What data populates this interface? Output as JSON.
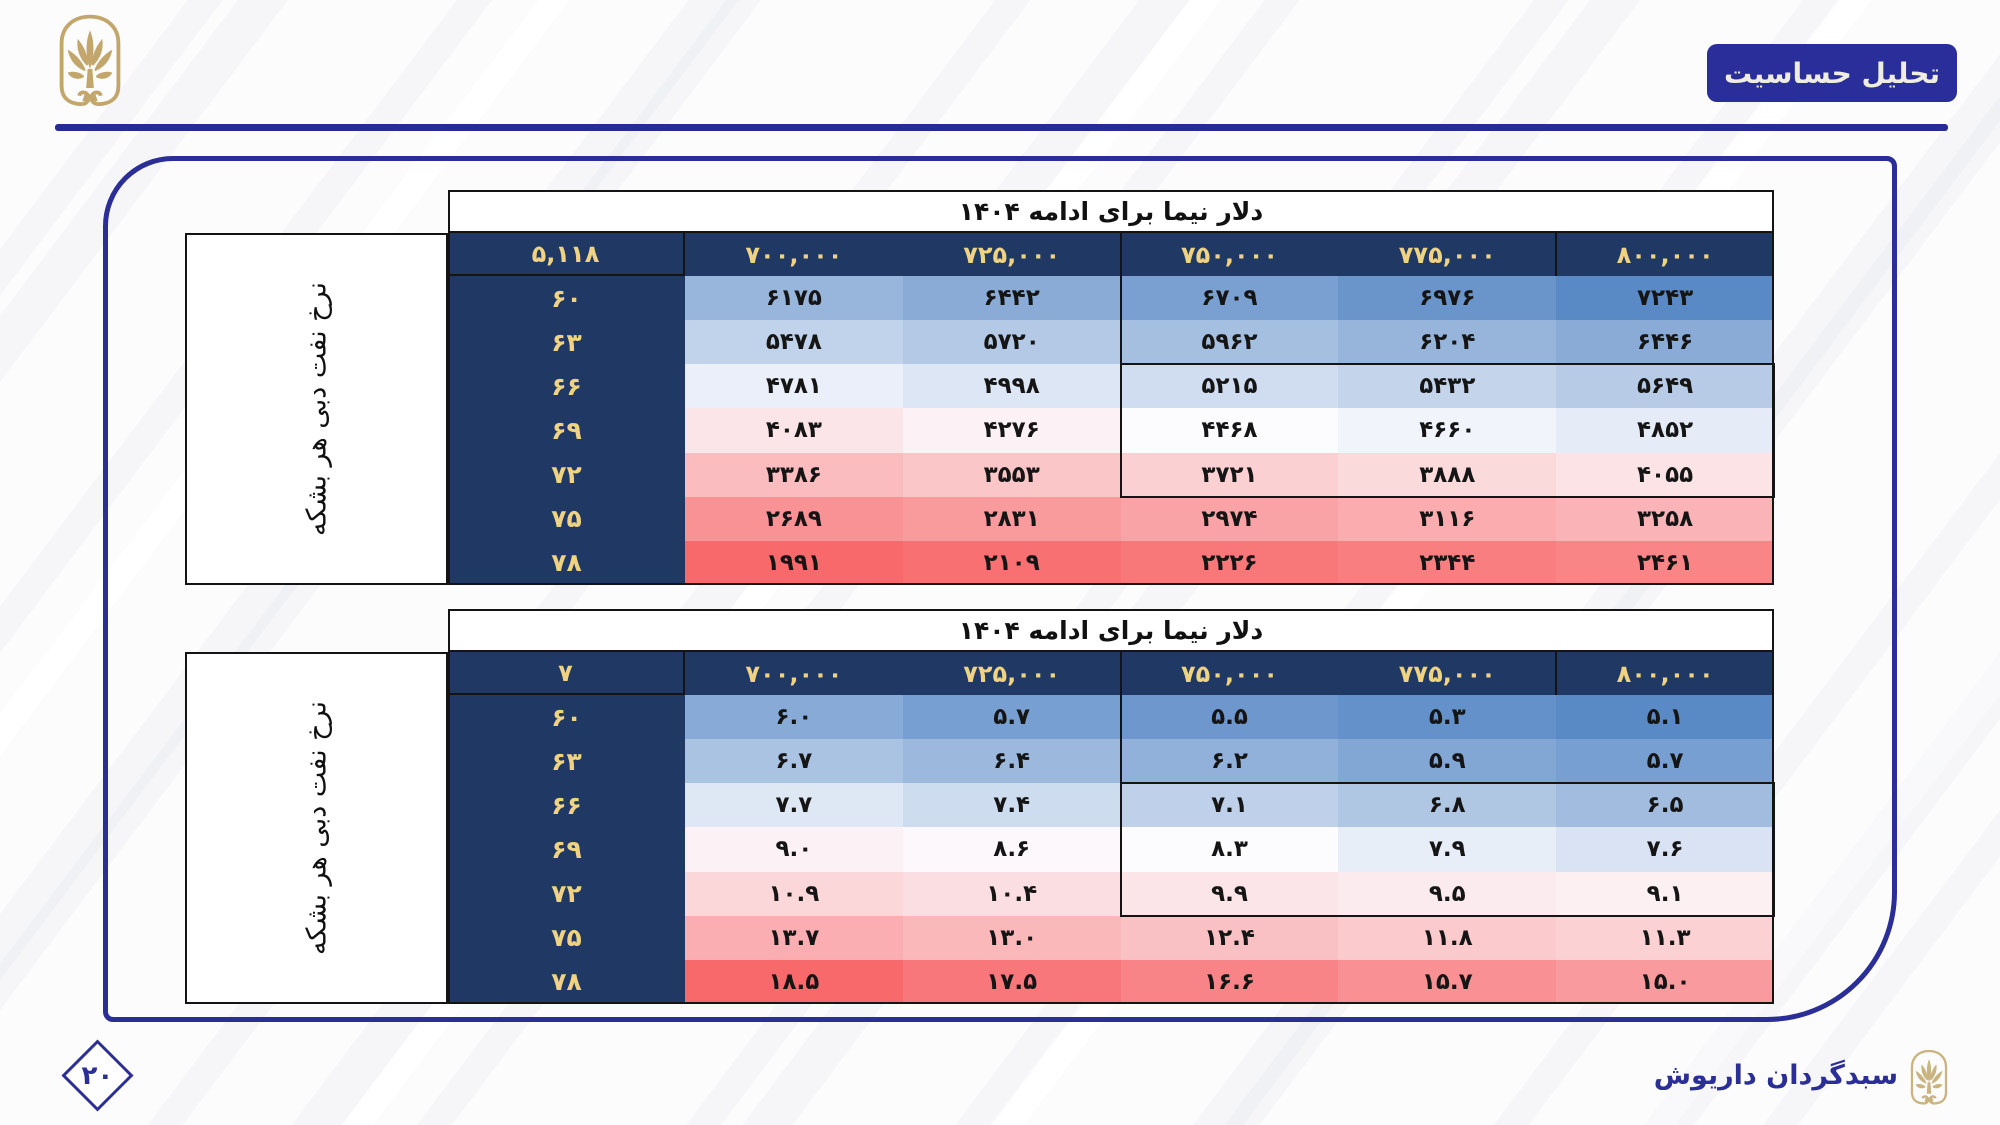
{
  "header": {
    "badge": "تحلیل حساسیت"
  },
  "footer": {
    "brand": "سبدگردان داریوش",
    "page_number": "۲۰"
  },
  "colors": {
    "navy_header": "#1F3864",
    "indigo_accent": "#2A2E96",
    "gold_text": "#EFD381",
    "logo_gold": "#C2A66B",
    "footer_logo_gold": "#C9B37E",
    "heat_red": "#F8696B",
    "heat_mid": "#FCFCFF",
    "heat_blue": "#5A8AC6"
  },
  "tables": [
    {
      "title": "دلار نیما برای ادامه ۱۴۰۴",
      "axis_label": "نرخ نفت دبی هر بشکه",
      "corner": "۵,۱۱۸",
      "col_headers": [
        "۷۰۰,۰۰۰",
        "۷۲۵,۰۰۰",
        "۷۵۰,۰۰۰",
        "۷۷۵,۰۰۰",
        "۸۰۰,۰۰۰"
      ],
      "row_headers": [
        "۶۰",
        "۶۳",
        "۶۶",
        "۶۹",
        "۷۲",
        "۷۵",
        "۷۸"
      ],
      "decimals": 0,
      "direction": "low_red_high_blue",
      "highlight": {
        "row_start": 2,
        "row_end": 4,
        "col_start": 2,
        "col_end": 4
      }
    },
    {
      "title": "دلار نیما برای ادامه ۱۴۰۴",
      "axis_label": "نرخ نفت دبی هر بشکه",
      "corner": "۷",
      "col_headers": [
        "۷۰۰,۰۰۰",
        "۷۲۵,۰۰۰",
        "۷۵۰,۰۰۰",
        "۷۷۵,۰۰۰",
        "۸۰۰,۰۰۰"
      ],
      "row_headers": [
        "۶۰",
        "۶۳",
        "۶۶",
        "۶۹",
        "۷۲",
        "۷۵",
        "۷۸"
      ],
      "decimals": 1,
      "direction": "low_blue_high_red",
      "highlight": {
        "row_start": 2,
        "row_end": 4,
        "col_start": 2,
        "col_end": 4
      }
    }
  ],
  "chart_data": [
    {
      "type": "heatmap",
      "title": "دلار نیما برای ادامه ۱۴۰۴",
      "ylabel": "نرخ نفت دبی هر بشکه",
      "corner_value": 5118,
      "x_categories": [
        700000,
        725000,
        750000,
        775000,
        800000
      ],
      "y_categories": [
        60,
        63,
        66,
        69,
        72,
        75,
        78
      ],
      "values": [
        [
          6175,
          6442,
          6709,
          6976,
          7243
        ],
        [
          5478,
          5720,
          5962,
          6204,
          6446
        ],
        [
          4781,
          4998,
          5215,
          5432,
          5649
        ],
        [
          4083,
          4276,
          4468,
          4660,
          4852
        ],
        [
          3386,
          3553,
          3721,
          3888,
          4055
        ],
        [
          2689,
          2831,
          2974,
          3116,
          3258
        ],
        [
          1991,
          2109,
          2226,
          2344,
          2461
        ]
      ],
      "colormap": "3-color scale: low=red #F8696B, median(4468)=white #FCFCFF, high=blue #5A8AC6",
      "annotations": "black highlight box on rows 66-72 x columns 750,000-800,000"
    },
    {
      "type": "heatmap",
      "title": "دلار نیما برای ادامه ۱۴۰۴",
      "ylabel": "نرخ نفت دبی هر بشکه",
      "corner_value": 7,
      "x_categories": [
        700000,
        725000,
        750000,
        775000,
        800000
      ],
      "y_categories": [
        60,
        63,
        66,
        69,
        72,
        75,
        78
      ],
      "values": [
        [
          6.0,
          5.7,
          5.5,
          5.3,
          5.1
        ],
        [
          6.7,
          6.4,
          6.2,
          5.9,
          5.7
        ],
        [
          7.7,
          7.4,
          7.1,
          6.8,
          6.5
        ],
        [
          9.0,
          8.6,
          8.3,
          7.9,
          7.6
        ],
        [
          10.9,
          10.4,
          9.9,
          9.5,
          9.1
        ],
        [
          13.7,
          13.0,
          12.4,
          11.8,
          11.3
        ],
        [
          18.5,
          17.5,
          16.6,
          15.7,
          15.0
        ]
      ],
      "colormap": "3-color scale: low=blue #5A8AC6, median(8.3)=white #FCFCFF, high=red #F8696B",
      "annotations": "black highlight box on rows 66-72 x columns 750,000-800,000"
    }
  ]
}
